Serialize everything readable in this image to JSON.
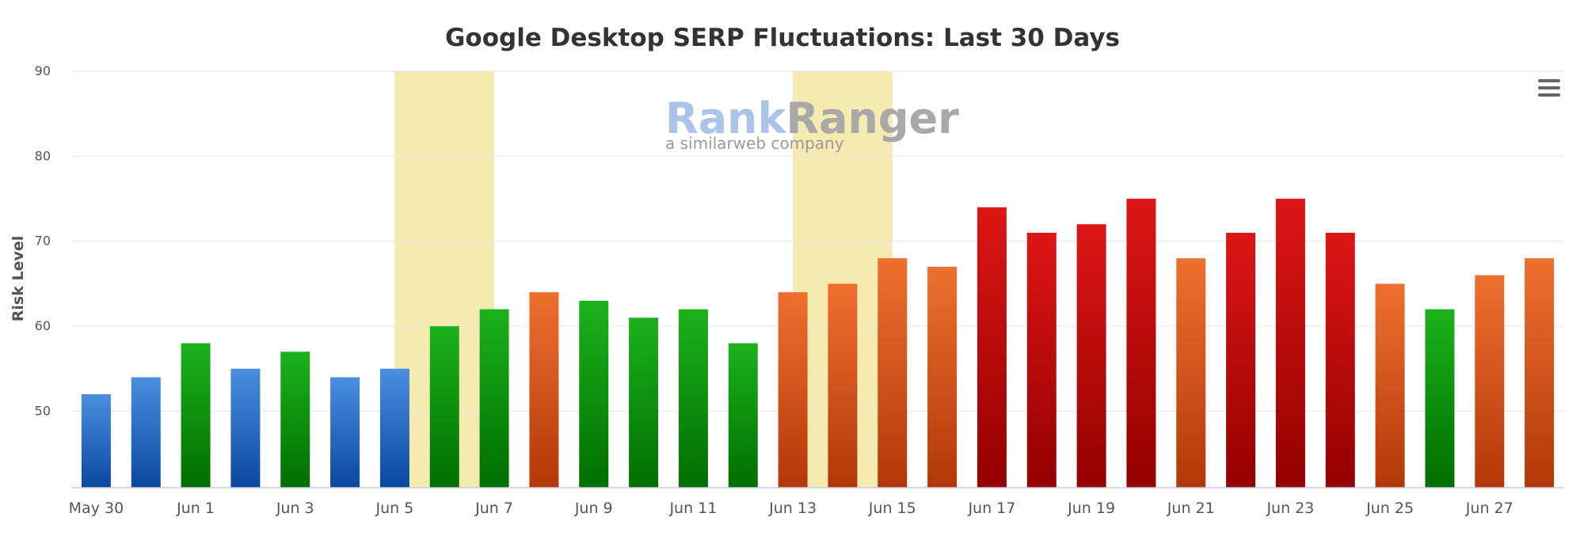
{
  "chart_data": {
    "type": "bar",
    "title": "Google Desktop SERP Fluctuations: Last 30 Days",
    "ylabel": "Risk Level",
    "xlabel": "",
    "ylim": [
      41,
      90
    ],
    "yticks": [
      50,
      60,
      70,
      80,
      90
    ],
    "grid": true,
    "legend": "none",
    "categories": [
      "May 30",
      "May 31",
      "Jun 1",
      "Jun 2",
      "Jun 3",
      "Jun 4",
      "Jun 5",
      "Jun 6",
      "Jun 7",
      "Jun 8",
      "Jun 9",
      "Jun 10",
      "Jun 11",
      "Jun 12",
      "Jun 13",
      "Jun 14",
      "Jun 15",
      "Jun 16",
      "Jun 17",
      "Jun 18",
      "Jun 19",
      "Jun 20",
      "Jun 21",
      "Jun 22",
      "Jun 23",
      "Jun 24",
      "Jun 25",
      "Jun 26",
      "Jun 27",
      "Jun 28"
    ],
    "x_tick_labels": [
      "May 30",
      "Jun 1",
      "Jun 3",
      "Jun 5",
      "Jun 7",
      "Jun 9",
      "Jun 11",
      "Jun 13",
      "Jun 15",
      "Jun 17",
      "Jun 19",
      "Jun 21",
      "Jun 23",
      "Jun 25",
      "Jun 27"
    ],
    "values": [
      52,
      54,
      58,
      55,
      57,
      54,
      55,
      60,
      62,
      64,
      63,
      61,
      62,
      58,
      64,
      65,
      68,
      67,
      74,
      71,
      72,
      75,
      68,
      71,
      75,
      71,
      65,
      62,
      66,
      68
    ],
    "bar_level_colors": {
      "blue": [
        "#4a8fe0",
        "#0a47a0"
      ],
      "green": [
        "#1cb21c",
        "#006e00"
      ],
      "orange": [
        "#ee7030",
        "#b23808"
      ],
      "red": [
        "#dd1616",
        "#930000"
      ]
    },
    "bar_levels": [
      "blue",
      "blue",
      "green",
      "blue",
      "green",
      "blue",
      "blue",
      "green",
      "green",
      "orange",
      "green",
      "green",
      "green",
      "green",
      "orange",
      "orange",
      "orange",
      "orange",
      "red",
      "red",
      "red",
      "red",
      "orange",
      "red",
      "red",
      "red",
      "orange",
      "green",
      "orange",
      "orange"
    ],
    "highlight_bands": [
      {
        "from": "Jun 5",
        "to": "Jun 7",
        "color": "#f5eab0"
      },
      {
        "from": "Jun 13",
        "to": "Jun 15",
        "color": "#f5eab0"
      }
    ]
  },
  "watermark": {
    "brand_part1": "Rank",
    "brand_part2": "Ranger",
    "tagline": "a similarweb company",
    "color1": "#aac4ea",
    "color2": "#a9a9a9"
  },
  "menu": {
    "icon": "hamburger-menu-icon"
  }
}
